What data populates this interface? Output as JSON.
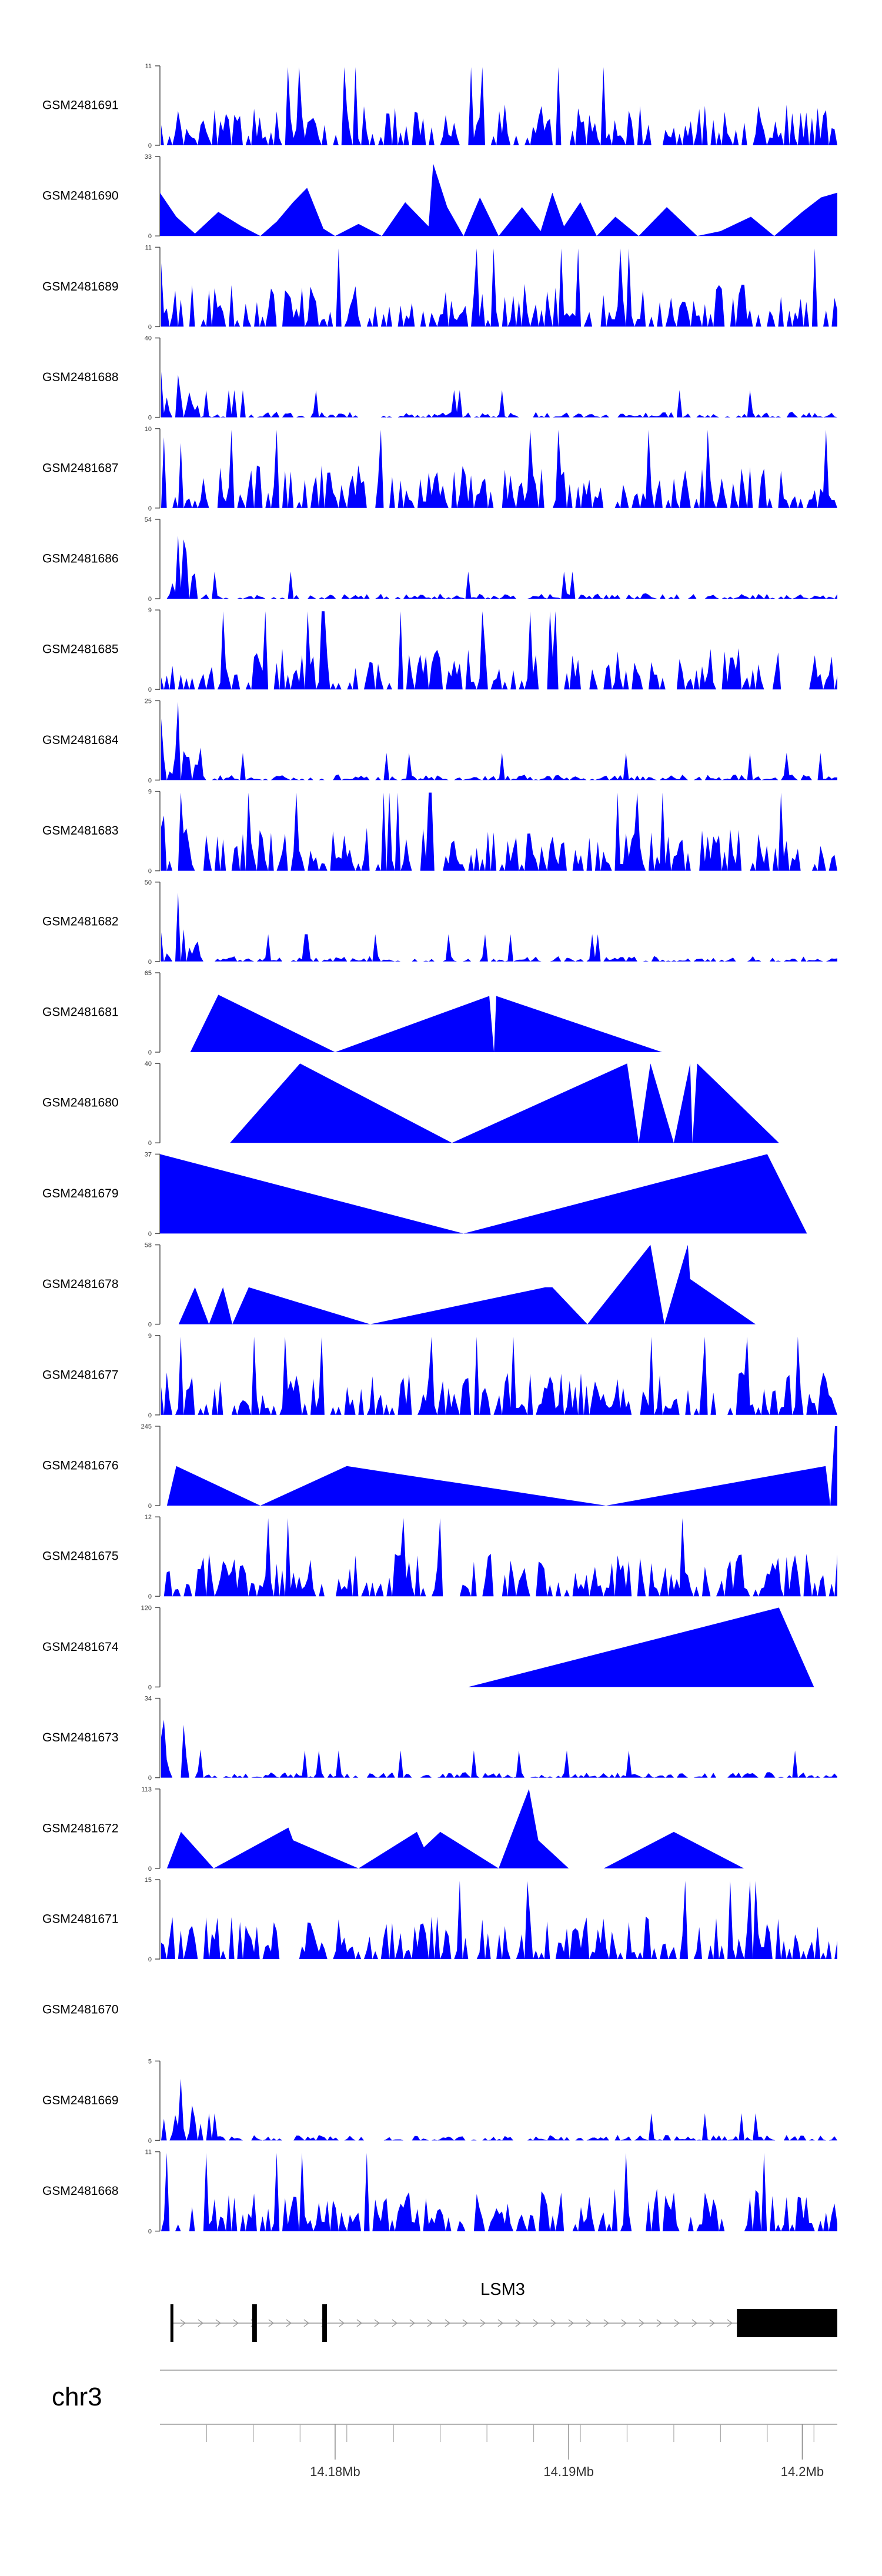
{
  "chart_data": {
    "type": "area",
    "fill_color": "#0000ff",
    "axis_color": "#555555",
    "x_range": [
      14.1725,
      14.2015
    ],
    "tracks": [
      {
        "name": "GSM2481691",
        "ymax": 11,
        "mode": "dense",
        "profile": "flat",
        "seed": 11
      },
      {
        "name": "GSM2481690",
        "ymax": 33,
        "mode": "sparse",
        "seed": 12,
        "points": [
          [
            14.1725,
            18
          ],
          [
            14.1732,
            8
          ],
          [
            14.174,
            1
          ],
          [
            14.175,
            10
          ],
          [
            14.176,
            4
          ],
          [
            14.1768,
            0
          ],
          [
            14.1775,
            6
          ],
          [
            14.1782,
            14
          ],
          [
            14.1788,
            20
          ],
          [
            14.1795,
            3
          ],
          [
            14.18,
            0
          ],
          [
            14.181,
            5
          ],
          [
            14.182,
            0
          ],
          [
            14.183,
            14
          ],
          [
            14.184,
            4
          ],
          [
            14.1842,
            30
          ],
          [
            14.1848,
            12
          ],
          [
            14.1855,
            0
          ],
          [
            14.1862,
            16
          ],
          [
            14.187,
            0
          ],
          [
            14.188,
            12
          ],
          [
            14.1888,
            2
          ],
          [
            14.1893,
            18
          ],
          [
            14.1898,
            4
          ],
          [
            14.1905,
            14
          ],
          [
            14.1912,
            0
          ],
          [
            14.192,
            8
          ],
          [
            14.193,
            0
          ],
          [
            14.1942,
            12
          ],
          [
            14.1955,
            0
          ],
          [
            14.1965,
            2
          ],
          [
            14.1978,
            8
          ],
          [
            14.1988,
            0
          ],
          [
            14.2,
            10
          ],
          [
            14.2008,
            16
          ],
          [
            14.2015,
            18
          ]
        ]
      },
      {
        "name": "GSM2481689",
        "ymax": 11,
        "mode": "dense",
        "profile": "flat",
        "seed": 13
      },
      {
        "name": "GSM2481688",
        "ymax": 40,
        "mode": "dense",
        "profile": "early",
        "seed": 14
      },
      {
        "name": "GSM2481687",
        "ymax": 10,
        "mode": "dense",
        "profile": "earlymid",
        "seed": 15
      },
      {
        "name": "GSM2481686",
        "ymax": 54,
        "mode": "dense",
        "profile": "early",
        "seed": 16
      },
      {
        "name": "GSM2481685",
        "ymax": 9,
        "mode": "dense",
        "profile": "flat",
        "seed": 17
      },
      {
        "name": "GSM2481684",
        "ymax": 25,
        "mode": "dense",
        "profile": "early",
        "seed": 18
      },
      {
        "name": "GSM2481683",
        "ymax": 9,
        "mode": "dense",
        "profile": "flat",
        "seed": 19
      },
      {
        "name": "GSM2481682",
        "ymax": 50,
        "mode": "dense",
        "profile": "early",
        "seed": 20
      },
      {
        "name": "GSM2481681",
        "ymax": 65,
        "mode": "sparse",
        "seed": 21,
        "points": [
          [
            14.1738,
            0
          ],
          [
            14.175,
            47
          ],
          [
            14.18,
            0
          ],
          [
            14.1866,
            46
          ],
          [
            14.1868,
            0
          ],
          [
            14.1869,
            46
          ],
          [
            14.194,
            0
          ]
        ]
      },
      {
        "name": "GSM2481680",
        "ymax": 40,
        "mode": "sparse",
        "seed": 22,
        "points": [
          [
            14.1755,
            0
          ],
          [
            14.1785,
            40
          ],
          [
            14.185,
            0
          ],
          [
            14.1925,
            40
          ],
          [
            14.193,
            0
          ],
          [
            14.1935,
            40
          ],
          [
            14.1945,
            0
          ],
          [
            14.1952,
            40
          ],
          [
            14.1953,
            0
          ],
          [
            14.1955,
            40
          ],
          [
            14.199,
            0
          ]
        ]
      },
      {
        "name": "GSM2481679",
        "ymax": 37,
        "mode": "sparse",
        "seed": 23,
        "points": [
          [
            14.1725,
            37
          ],
          [
            14.1855,
            0
          ],
          [
            14.1985,
            37
          ],
          [
            14.2002,
            0
          ]
        ]
      },
      {
        "name": "GSM2481678",
        "ymax": 58,
        "mode": "sparse",
        "seed": 24,
        "points": [
          [
            14.1733,
            0
          ],
          [
            14.174,
            27
          ],
          [
            14.1746,
            0
          ],
          [
            14.1752,
            27
          ],
          [
            14.1756,
            0
          ],
          [
            14.1763,
            27
          ],
          [
            14.1815,
            0
          ],
          [
            14.189,
            27
          ],
          [
            14.1893,
            27
          ],
          [
            14.1908,
            0
          ],
          [
            14.1935,
            58
          ],
          [
            14.1941,
            0
          ],
          [
            14.1951,
            58
          ],
          [
            14.1952,
            33
          ],
          [
            14.198,
            0
          ]
        ]
      },
      {
        "name": "GSM2481677",
        "ymax": 9,
        "mode": "dense",
        "profile": "flat",
        "seed": 25
      },
      {
        "name": "GSM2481676",
        "ymax": 245,
        "mode": "sparse",
        "seed": 26,
        "points": [
          [
            14.1728,
            0
          ],
          [
            14.1732,
            122
          ],
          [
            14.1768,
            0
          ],
          [
            14.1805,
            122
          ],
          [
            14.1916,
            0
          ],
          [
            14.201,
            122
          ],
          [
            14.2012,
            0
          ],
          [
            14.2014,
            245
          ],
          [
            14.2015,
            245
          ]
        ]
      },
      {
        "name": "GSM2481675",
        "ymax": 12,
        "mode": "dense",
        "profile": "flat",
        "seed": 27
      },
      {
        "name": "GSM2481674",
        "ymax": 120,
        "mode": "sparse",
        "seed": 28,
        "points": [
          [
            14.1857,
            0
          ],
          [
            14.199,
            120
          ],
          [
            14.2005,
            0
          ]
        ]
      },
      {
        "name": "GSM2481673",
        "ymax": 34,
        "mode": "dense",
        "profile": "early",
        "seed": 29
      },
      {
        "name": "GSM2481672",
        "ymax": 113,
        "mode": "sparse",
        "seed": 30,
        "points": [
          [
            14.1728,
            0
          ],
          [
            14.1734,
            52
          ],
          [
            14.1748,
            0
          ],
          [
            14.178,
            58
          ],
          [
            14.1782,
            40
          ],
          [
            14.181,
            0
          ],
          [
            14.1835,
            52
          ],
          [
            14.1838,
            30
          ],
          [
            14.1845,
            52
          ],
          [
            14.187,
            0
          ],
          [
            14.1883,
            113
          ],
          [
            14.1887,
            40
          ],
          [
            14.19,
            0
          ],
          [
            14.1915,
            0
          ],
          [
            14.1945,
            52
          ],
          [
            14.1975,
            0
          ]
        ]
      },
      {
        "name": "GSM2481671",
        "ymax": 15,
        "mode": "dense",
        "profile": "flat",
        "seed": 31
      },
      {
        "name": "GSM2481670",
        "ymax": null,
        "mode": "empty",
        "seed": 32
      },
      {
        "name": "GSM2481669",
        "ymax": 5,
        "mode": "dense",
        "profile": "early",
        "seed": 33
      },
      {
        "name": "GSM2481668",
        "ymax": 11,
        "mode": "dense",
        "profile": "flat",
        "seed": 34
      }
    ],
    "gene": {
      "name": "LSM3",
      "strand": "+",
      "exons": [
        {
          "start": 14.173,
          "end": 14.1731,
          "type": "utr"
        },
        {
          "start": 14.1765,
          "end": 14.1767,
          "type": "utr"
        },
        {
          "start": 14.1795,
          "end": 14.1797,
          "type": "utr"
        },
        {
          "start": 14.1972,
          "end": 14.2015,
          "type": "cds"
        }
      ]
    },
    "axis": {
      "chromosome": "chr3",
      "ticks": [
        14.18,
        14.19,
        14.2
      ],
      "tick_labels": [
        "14.18Mb",
        "14.19Mb",
        "14.2Mb"
      ],
      "minor_ticks": [
        14.1745,
        14.1765,
        14.1785,
        14.1805,
        14.1825,
        14.1845,
        14.1865,
        14.1885,
        14.1905,
        14.1925,
        14.1945,
        14.1965,
        14.1985,
        14.2005
      ]
    }
  }
}
